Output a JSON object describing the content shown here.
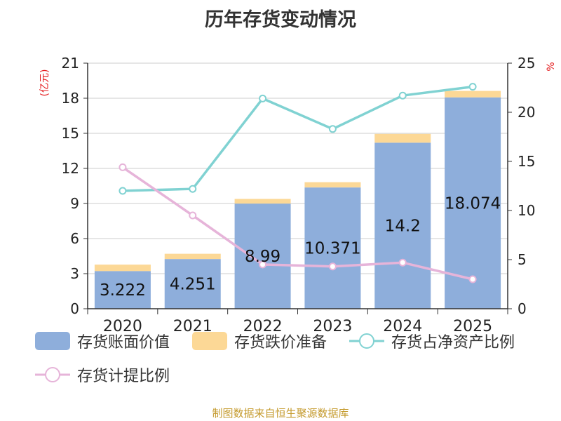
{
  "chart_data": {
    "type": "bar",
    "title": "历年存货变动情况",
    "ylabel": "(亿元)",
    "y2label": "%",
    "ylim": [
      0,
      21
    ],
    "y2lim": [
      0,
      25
    ],
    "y_ticks": [
      "0",
      "3",
      "6",
      "9",
      "12",
      "15",
      "18",
      "21"
    ],
    "y2_ticks": [
      "0",
      "5",
      "10",
      "15",
      "20",
      "25"
    ],
    "categories": [
      "2020",
      "2021",
      "2022",
      "2023",
      "2024",
      "2025"
    ],
    "series": [
      {
        "name": "存货账面价值",
        "kind": "bar",
        "axis": "left",
        "values": [
          3.222,
          4.251,
          8.99,
          10.371,
          14.2,
          18.074
        ],
        "labels": [
          "3.222",
          "4.251",
          "8.99",
          "10.371",
          "14.2",
          "18.074"
        ],
        "color": "#8eaedb"
      },
      {
        "name": "存货跌价准备",
        "kind": "bar-stacked",
        "axis": "left",
        "values": [
          0.55,
          0.45,
          0.4,
          0.45,
          0.75,
          0.55
        ],
        "color": "#fcd896"
      },
      {
        "name": "存货占净资产比例",
        "kind": "line",
        "axis": "right",
        "values": [
          12.0,
          12.2,
          21.4,
          18.3,
          21.7,
          22.6
        ],
        "color": "#80d2d2"
      },
      {
        "name": "存货计提比例",
        "kind": "line",
        "axis": "right",
        "values": [
          14.4,
          9.5,
          4.5,
          4.3,
          4.7,
          3.0
        ],
        "color": "#e6b4d9"
      }
    ],
    "legend_position": "bottom"
  },
  "source": "制图数据来自恒生聚源数据库"
}
